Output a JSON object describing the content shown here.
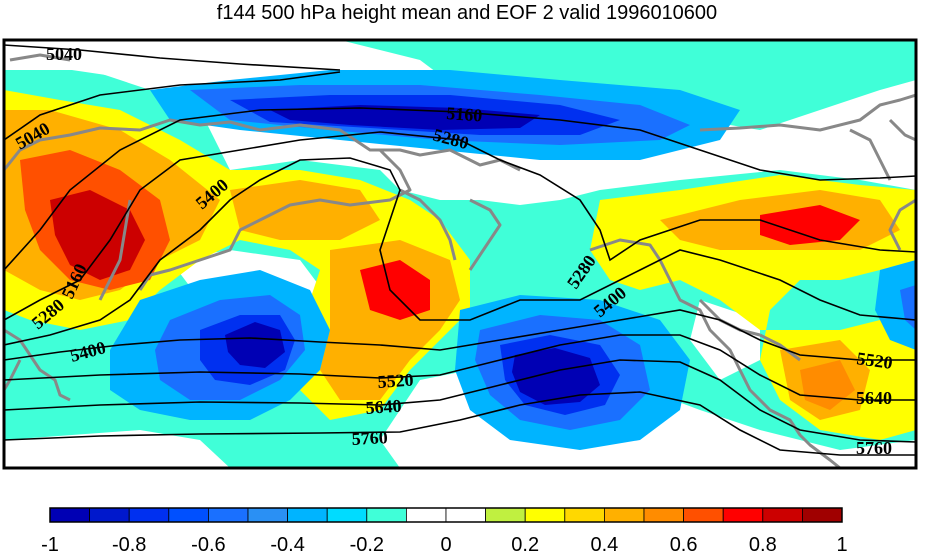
{
  "title": "f144 500 hPa height mean and EOF 2 valid 1996010600",
  "colorbar": {
    "colors": [
      "#0000b4",
      "#0018cc",
      "#0030f0",
      "#0050ff",
      "#1a70ff",
      "#2a90f4",
      "#00b4ff",
      "#00dcff",
      "#40ffd8",
      "#ffffff",
      "#ffffff",
      "#c0f040",
      "#ffff00",
      "#ffd800",
      "#ffb000",
      "#ff8c00",
      "#ff5000",
      "#ff0000",
      "#cc0000",
      "#a00000"
    ],
    "tick_labels": [
      "-1",
      "-0.8",
      "-0.6",
      "-0.4",
      "-0.2",
      "0",
      "0.2",
      "0.4",
      "0.6",
      "0.8",
      "1"
    ],
    "tick_values": [
      -1,
      -0.8,
      -0.6,
      -0.4,
      -0.2,
      0,
      0.2,
      0.4,
      0.6,
      0.8,
      1
    ]
  },
  "contour_labels": [
    "5040",
    "5040",
    "5160",
    "5160",
    "5280",
    "5280",
    "5280",
    "5400",
    "5400",
    "5400",
    "5520",
    "5520",
    "5640",
    "5640",
    "5760",
    "5760"
  ],
  "colors": {
    "background_fill": "#40ffd8",
    "land_outline": "#888888",
    "contour_line": "#000000"
  }
}
